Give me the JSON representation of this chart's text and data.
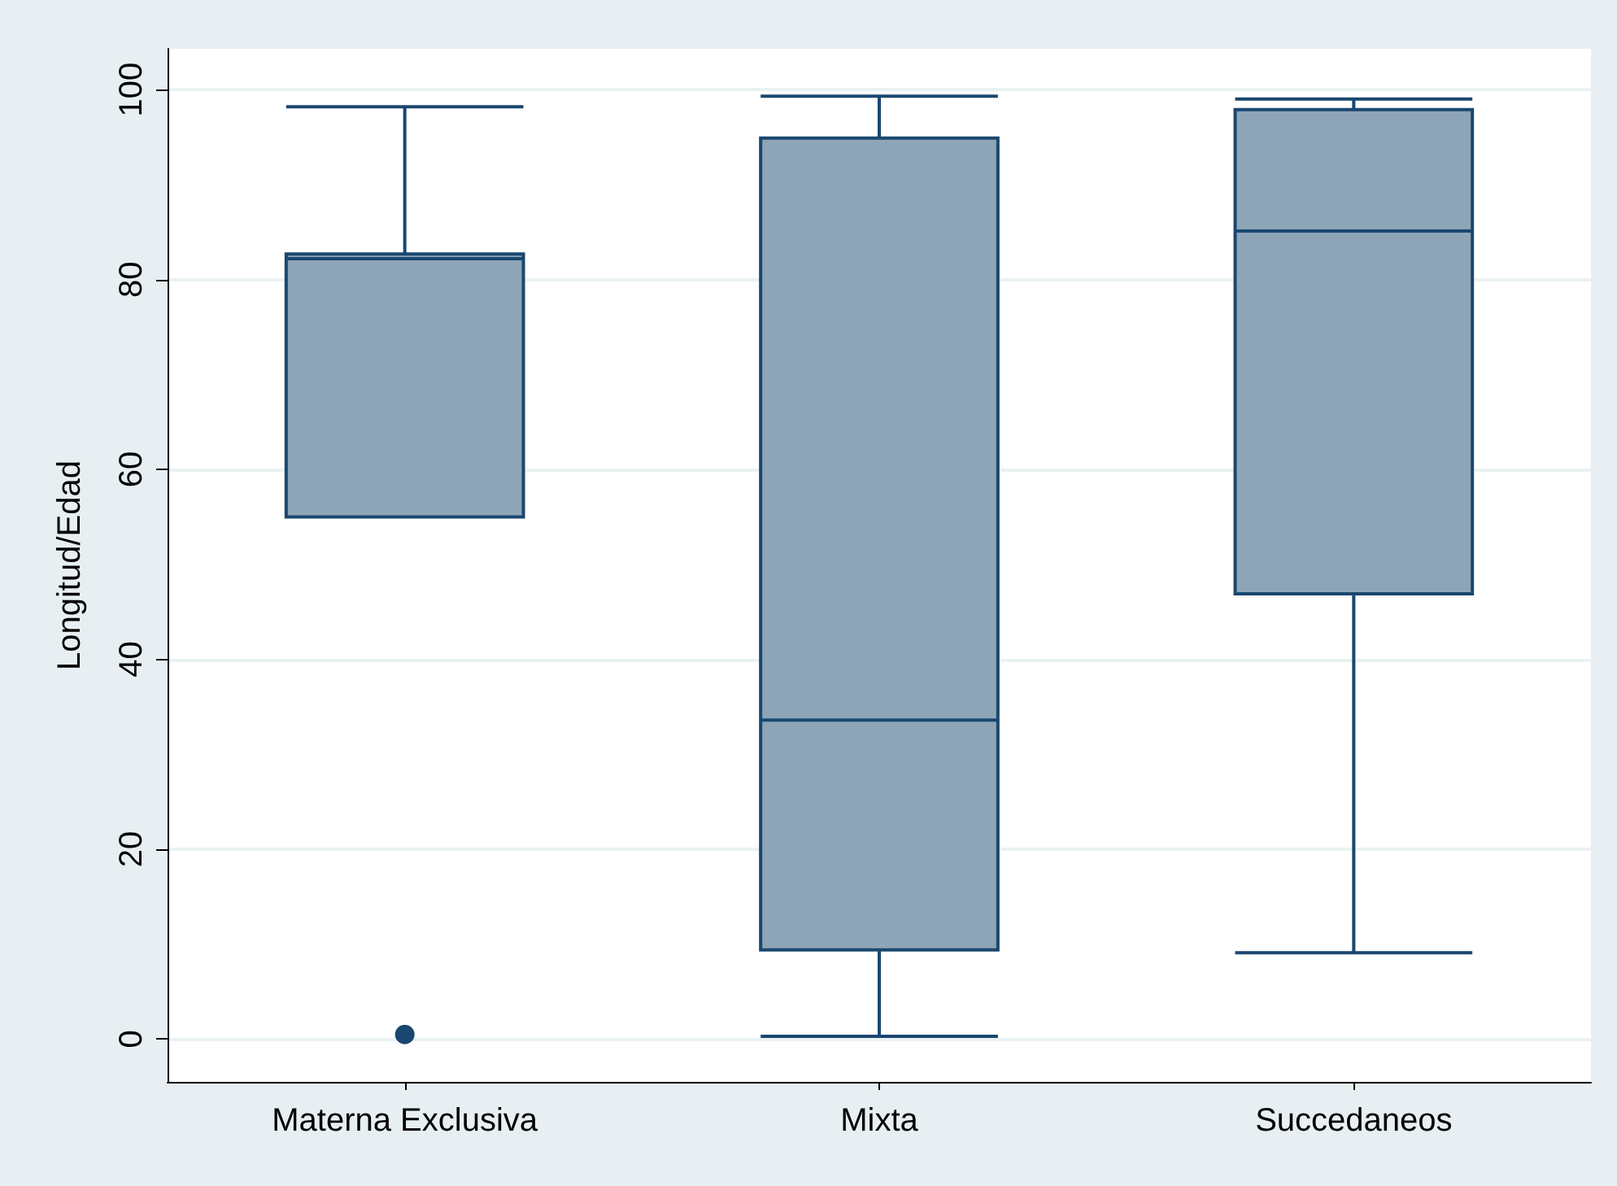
{
  "chart_data": {
    "type": "box",
    "ylabel": "Longitud/Edad",
    "categories": [
      "Materna Exclusiva",
      "Mixta",
      "Succedaneos"
    ],
    "boxes": [
      {
        "low": 55,
        "q1": 55,
        "median": 82.2,
        "q3": 82.7,
        "high": 98.2,
        "outliers": [
          0.5
        ]
      },
      {
        "low": 0.3,
        "q1": 9.4,
        "median": 33.6,
        "q3": 94.9,
        "high": 99.3
      },
      {
        "low": 9.1,
        "q1": 46.9,
        "median": 85.1,
        "q3": 97.9,
        "high": 99.0
      }
    ],
    "color": "#8ea5b8",
    "ylim": [
      -4.5,
      104.3
    ],
    "yticks": [
      0,
      20,
      40,
      60,
      80,
      100
    ],
    "grid": "y"
  }
}
